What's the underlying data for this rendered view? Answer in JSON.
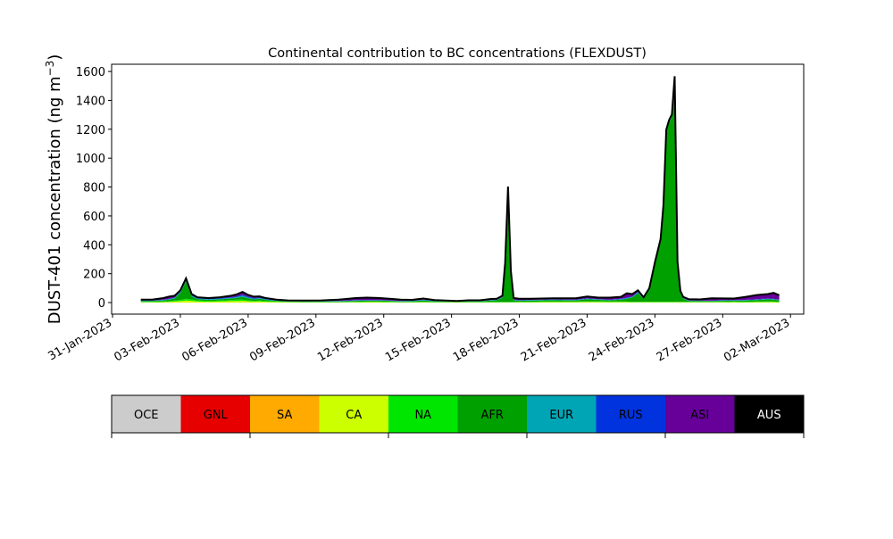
{
  "chart_data": {
    "type": "area",
    "title": "Continental contribution to BC concentrations (FLEXDUST)",
    "ylabel_main": "DUST-401 concentration (ng m",
    "ylabel_sup": "−3",
    "ylabel_tail": ")",
    "xlabel": "",
    "stacked": true,
    "xlim": [
      "2023-01-30T23:00",
      "2023-03-02T14:00"
    ],
    "ylim": [
      -80,
      1650
    ],
    "xticks": [
      "31-Jan-2023",
      "03-Feb-2023",
      "06-Feb-2023",
      "09-Feb-2023",
      "12-Feb-2023",
      "15-Feb-2023",
      "18-Feb-2023",
      "21-Feb-2023",
      "24-Feb-2023",
      "27-Feb-2023",
      "02-Mar-2023"
    ],
    "xtick_dates": [
      "2023-01-31",
      "2023-02-03",
      "2023-02-06",
      "2023-02-09",
      "2023-02-12",
      "2023-02-15",
      "2023-02-18",
      "2023-02-21",
      "2023-02-24",
      "2023-02-27",
      "2023-03-02"
    ],
    "yticks": [
      0,
      200,
      400,
      600,
      800,
      1000,
      1200,
      1400,
      1600
    ],
    "x": [
      "2023-02-01T06:00",
      "2023-02-01T18:00",
      "2023-02-02T06:00",
      "2023-02-02T12:00",
      "2023-02-02T18:00",
      "2023-02-03T00:00",
      "2023-02-03T06:00",
      "2023-02-03T12:00",
      "2023-02-03T18:00",
      "2023-02-04T06:00",
      "2023-02-04T18:00",
      "2023-02-05T06:00",
      "2023-02-05T12:00",
      "2023-02-05T18:00",
      "2023-02-06T00:00",
      "2023-02-06T06:00",
      "2023-02-06T12:00",
      "2023-02-06T18:00",
      "2023-02-07T06:00",
      "2023-02-07T18:00",
      "2023-02-08T12:00",
      "2023-02-09T06:00",
      "2023-02-10T00:00",
      "2023-02-10T18:00",
      "2023-02-11T06:00",
      "2023-02-11T18:00",
      "2023-02-12T06:00",
      "2023-02-12T18:00",
      "2023-02-13T06:00",
      "2023-02-13T18:00",
      "2023-02-14T06:00",
      "2023-02-14T18:00",
      "2023-02-15T06:00",
      "2023-02-15T18:00",
      "2023-02-16T06:00",
      "2023-02-16T18:00",
      "2023-02-17T00:00",
      "2023-02-17T06:00",
      "2023-02-17T09:00",
      "2023-02-17T12:00",
      "2023-02-17T15:00",
      "2023-02-17T18:00",
      "2023-02-18T00:00",
      "2023-02-18T12:00",
      "2023-02-19T00:00",
      "2023-02-19T12:00",
      "2023-02-20T00:00",
      "2023-02-20T12:00",
      "2023-02-21T00:00",
      "2023-02-21T12:00",
      "2023-02-22T00:00",
      "2023-02-22T12:00",
      "2023-02-22T18:00",
      "2023-02-23T00:00",
      "2023-02-23T06:00",
      "2023-02-23T12:00",
      "2023-02-23T18:00",
      "2023-02-24T00:00",
      "2023-02-24T06:00",
      "2023-02-24T09:00",
      "2023-02-24T12:00",
      "2023-02-24T15:00",
      "2023-02-24T18:00",
      "2023-02-24T21:00",
      "2023-02-25T00:00",
      "2023-02-25T03:00",
      "2023-02-25T06:00",
      "2023-02-25T12:00",
      "2023-02-26T00:00",
      "2023-02-26T12:00",
      "2023-02-27T00:00",
      "2023-02-27T12:00",
      "2023-02-28T00:00",
      "2023-02-28T12:00",
      "2023-03-01T00:00",
      "2023-03-01T06:00",
      "2023-03-01T12:00"
    ],
    "series": [
      {
        "name": "OCE",
        "color": "#cccccc",
        "values": [
          0,
          0,
          0,
          0,
          0,
          0,
          0,
          0,
          0,
          0,
          0,
          0,
          0,
          0,
          0,
          0,
          0,
          0,
          0,
          0,
          0,
          0,
          0,
          0,
          0,
          0,
          0,
          0,
          0,
          0,
          0,
          0,
          0,
          0,
          0,
          0,
          0,
          0,
          0,
          0,
          0,
          0,
          0,
          0,
          0,
          0,
          0,
          0,
          0,
          0,
          0,
          0,
          0,
          0,
          0,
          0,
          0,
          0,
          0,
          0,
          0,
          0,
          0,
          0,
          0,
          0,
          0,
          0,
          0,
          0,
          0,
          0,
          0,
          0,
          0,
          0,
          0
        ]
      },
      {
        "name": "GNL",
        "color": "#e60000",
        "values": [
          0,
          0,
          0,
          0,
          0,
          0,
          0,
          0,
          0,
          0,
          0,
          0,
          0,
          0,
          0,
          0,
          0,
          0,
          0,
          0,
          0,
          0,
          0,
          0,
          0,
          0,
          0,
          0,
          0,
          0,
          0,
          0,
          0,
          0,
          0,
          0,
          0,
          0,
          0,
          0,
          0,
          0,
          0,
          0,
          0,
          0,
          0,
          0,
          0,
          0,
          0,
          0,
          0,
          0,
          0,
          0,
          0,
          0,
          0,
          0,
          0,
          0,
          0,
          0,
          0,
          0,
          0,
          0,
          0,
          0,
          0,
          0,
          0,
          0,
          0,
          0,
          0
        ]
      },
      {
        "name": "SA",
        "color": "#ffaa00",
        "values": [
          0,
          0,
          0,
          0,
          0,
          0,
          0,
          0,
          0,
          0,
          0,
          0,
          0,
          0,
          0,
          0,
          0,
          0,
          0,
          0,
          0,
          0,
          0,
          0,
          0,
          0,
          0,
          0,
          0,
          0,
          0,
          0,
          0,
          0,
          0,
          0,
          0,
          0,
          0,
          0,
          0,
          0,
          0,
          0,
          0,
          0,
          0,
          0,
          0,
          0,
          0,
          0,
          0,
          0,
          0,
          0,
          0,
          0,
          0,
          0,
          0,
          0,
          0,
          0,
          0,
          0,
          0,
          0,
          0,
          0,
          0,
          0,
          0,
          0,
          0,
          0,
          0
        ]
      },
      {
        "name": "CA",
        "color": "#ccff00",
        "values": [
          3,
          3,
          4,
          5,
          8,
          10,
          14,
          12,
          8,
          6,
          8,
          10,
          11,
          12,
          9,
          7,
          8,
          6,
          4,
          3,
          2,
          2,
          2,
          3,
          4,
          4,
          3,
          2,
          2,
          3,
          2,
          2,
          2,
          2,
          2,
          2,
          2,
          2,
          2,
          2,
          2,
          2,
          3,
          3,
          4,
          4,
          4,
          4,
          5,
          5,
          4,
          4,
          4,
          3,
          3,
          3,
          3,
          3,
          3,
          3,
          3,
          3,
          3,
          3,
          3,
          3,
          3,
          3,
          3,
          3,
          3,
          4,
          3,
          4,
          4,
          4,
          3
        ]
      },
      {
        "name": "NA",
        "color": "#00e600",
        "values": [
          3,
          3,
          4,
          5,
          6,
          8,
          12,
          10,
          7,
          5,
          6,
          8,
          9,
          8,
          7,
          5,
          6,
          5,
          3,
          2,
          2,
          2,
          2,
          3,
          3,
          3,
          3,
          2,
          2,
          2,
          2,
          2,
          2,
          2,
          2,
          2,
          2,
          2,
          2,
          2,
          2,
          2,
          3,
          3,
          3,
          3,
          3,
          3,
          4,
          4,
          3,
          3,
          3,
          3,
          3,
          3,
          3,
          3,
          3,
          3,
          3,
          3,
          3,
          3,
          3,
          3,
          3,
          3,
          3,
          3,
          3,
          3,
          3,
          3,
          4,
          4,
          3
        ]
      },
      {
        "name": "AFR",
        "color": "#00a000",
        "values": [
          4,
          4,
          6,
          10,
          14,
          50,
          120,
          20,
          8,
          8,
          8,
          10,
          12,
          20,
          14,
          10,
          12,
          8,
          4,
          3,
          3,
          3,
          4,
          6,
          6,
          6,
          6,
          4,
          5,
          10,
          5,
          3,
          3,
          4,
          4,
          10,
          12,
          30,
          260,
          780,
          200,
          12,
          6,
          8,
          8,
          10,
          8,
          8,
          14,
          10,
          8,
          14,
          20,
          30,
          60,
          20,
          80,
          260,
          420,
          650,
          1170,
          1240,
          1280,
          1540,
          260,
          60,
          20,
          5,
          4,
          4,
          6,
          6,
          8,
          10,
          14,
          12,
          10
        ]
      },
      {
        "name": "EUR",
        "color": "#00a5b5",
        "values": [
          3,
          3,
          4,
          4,
          5,
          6,
          8,
          6,
          5,
          4,
          5,
          5,
          6,
          8,
          6,
          5,
          5,
          4,
          3,
          2,
          2,
          2,
          2,
          3,
          3,
          3,
          2,
          2,
          2,
          3,
          2,
          2,
          1,
          2,
          2,
          3,
          3,
          3,
          3,
          5,
          3,
          3,
          3,
          3,
          3,
          3,
          3,
          3,
          4,
          3,
          3,
          3,
          4,
          4,
          5,
          3,
          3,
          3,
          3,
          4,
          5,
          4,
          4,
          5,
          4,
          3,
          3,
          2,
          2,
          2,
          3,
          3,
          3,
          4,
          4,
          4,
          3
        ]
      },
      {
        "name": "RUS",
        "color": "#0033dd",
        "values": [
          2,
          2,
          3,
          3,
          4,
          5,
          6,
          5,
          4,
          3,
          4,
          4,
          5,
          6,
          5,
          4,
          4,
          3,
          2,
          2,
          2,
          2,
          2,
          2,
          2,
          2,
          2,
          2,
          2,
          2,
          2,
          2,
          1,
          2,
          2,
          2,
          2,
          2,
          2,
          4,
          2,
          2,
          2,
          2,
          2,
          2,
          2,
          2,
          3,
          2,
          2,
          2,
          3,
          3,
          4,
          2,
          2,
          2,
          2,
          3,
          4,
          3,
          3,
          4,
          3,
          2,
          2,
          2,
          2,
          2,
          2,
          2,
          2,
          3,
          3,
          3,
          2
        ]
      },
      {
        "name": "ASI",
        "color": "#660099",
        "values": [
          5,
          6,
          10,
          15,
          10,
          6,
          8,
          6,
          5,
          5,
          6,
          10,
          14,
          20,
          12,
          10,
          8,
          6,
          4,
          3,
          3,
          4,
          8,
          14,
          16,
          14,
          10,
          8,
          6,
          8,
          4,
          3,
          2,
          4,
          4,
          6,
          6,
          8,
          8,
          10,
          8,
          10,
          10,
          8,
          8,
          8,
          10,
          10,
          12,
          10,
          14,
          14,
          30,
          16,
          10,
          6,
          8,
          8,
          8,
          10,
          12,
          10,
          10,
          12,
          8,
          10,
          8,
          8,
          8,
          16,
          12,
          10,
          20,
          28,
          30,
          40,
          30
        ]
      },
      {
        "name": "AUS",
        "color": "#000000",
        "values": [
          0,
          0,
          0,
          0,
          0,
          0,
          0,
          0,
          0,
          0,
          0,
          0,
          0,
          0,
          0,
          0,
          0,
          0,
          0,
          0,
          0,
          0,
          0,
          0,
          0,
          0,
          0,
          0,
          0,
          0,
          0,
          0,
          0,
          0,
          0,
          0,
          0,
          0,
          0,
          0,
          0,
          0,
          0,
          0,
          0,
          0,
          0,
          0,
          0,
          0,
          0,
          0,
          0,
          0,
          0,
          0,
          0,
          0,
          0,
          0,
          0,
          0,
          0,
          0,
          0,
          0,
          0,
          0,
          0,
          0,
          0,
          0,
          0,
          0,
          0,
          0,
          0
        ]
      }
    ],
    "legend_placement": "bottom",
    "grid": false
  }
}
